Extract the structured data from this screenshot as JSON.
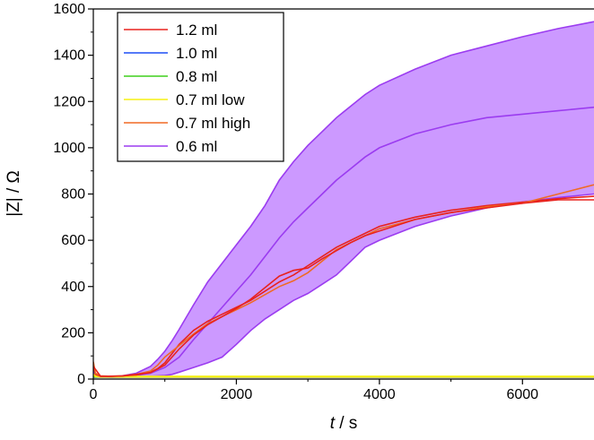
{
  "chart_data": {
    "type": "line",
    "title": "",
    "xlabel_italic": "t",
    "xlabel_unit": " / s",
    "ylabel": "|Z| / Ω",
    "xlim": [
      0,
      7000
    ],
    "ylim": [
      0,
      1600
    ],
    "xticks": [
      0,
      2000,
      4000,
      6000
    ],
    "yticks": [
      0,
      200,
      400,
      600,
      800,
      1000,
      1200,
      1400,
      1600
    ],
    "grid": false,
    "legend_position": "top-left",
    "shaded_band": {
      "series": "0.6 ml",
      "fill_color": "#cc99ff",
      "upper": {
        "x": [
          0,
          30,
          100,
          250,
          400,
          600,
          800,
          900,
          1000,
          1100,
          1200,
          1400,
          1600,
          1800,
          2000,
          2200,
          2400,
          2600,
          2800,
          3000,
          3200,
          3400,
          3600,
          3800,
          4000,
          4500,
          5000,
          5500,
          6000,
          6500,
          7000
        ],
        "values": [
          40,
          20,
          12,
          10,
          14,
          25,
          55,
          85,
          120,
          165,
          215,
          320,
          420,
          500,
          580,
          660,
          750,
          860,
          940,
          1010,
          1070,
          1130,
          1180,
          1230,
          1270,
          1340,
          1400,
          1440,
          1480,
          1515,
          1545
        ]
      },
      "lower": {
        "x": [
          0,
          30,
          100,
          250,
          400,
          600,
          800,
          1000,
          1100,
          1200,
          1400,
          1600,
          1800,
          2000,
          2200,
          2400,
          2600,
          2800,
          3000,
          3200,
          3400,
          3600,
          3800,
          4000,
          4500,
          5000,
          5500,
          6000,
          6500,
          7000
        ],
        "values": [
          30,
          15,
          10,
          8,
          9,
          10,
          12,
          15,
          20,
          30,
          50,
          70,
          95,
          150,
          210,
          260,
          300,
          340,
          370,
          410,
          450,
          510,
          570,
          600,
          660,
          705,
          740,
          765,
          785,
          800
        ]
      }
    },
    "series": [
      {
        "name": "1.2 ml",
        "color": "#e8231e",
        "x": [
          0,
          30,
          100,
          250,
          400,
          600,
          800,
          900,
          1000,
          1200,
          1400,
          1600,
          1800,
          2000,
          2200,
          2400,
          2600,
          2800,
          3000,
          3200,
          3400,
          3600,
          3800,
          4000,
          4500,
          5000,
          5500,
          6000,
          6500,
          7000
        ],
        "values": [
          60,
          20,
          12,
          12,
          13,
          18,
          30,
          45,
          70,
          150,
          210,
          250,
          280,
          310,
          340,
          380,
          420,
          450,
          490,
          530,
          570,
          600,
          630,
          660,
          700,
          730,
          750,
          765,
          780,
          790
        ]
      },
      {
        "name": "1.0 ml",
        "color": "#1d4ef5",
        "x": [
          0,
          7000
        ],
        "values": [
          8,
          8
        ]
      },
      {
        "name": "0.8 ml",
        "color": "#3ecf1b",
        "x": [
          0,
          7000
        ],
        "values": [
          9,
          9
        ]
      },
      {
        "name": "0.7 ml low",
        "color": "#f5f014",
        "x": [
          0,
          30,
          100,
          300,
          7000
        ],
        "values": [
          20,
          12,
          10,
          10,
          10
        ]
      },
      {
        "name": "0.7 ml high",
        "color": "#f06a24",
        "x": [
          0,
          30,
          100,
          250,
          400,
          600,
          800,
          900,
          1000,
          1200,
          1400,
          1600,
          1800,
          2000,
          2200,
          2400,
          2600,
          2800,
          3000,
          3200,
          3400,
          3600,
          3800,
          4000,
          4500,
          5000,
          5500,
          6000,
          6500,
          7000
        ],
        "values": [
          75,
          25,
          14,
          12,
          14,
          20,
          35,
          60,
          95,
          145,
          195,
          240,
          270,
          300,
          330,
          365,
          400,
          425,
          460,
          510,
          560,
          590,
          620,
          650,
          690,
          720,
          745,
          760,
          800,
          840
        ]
      },
      {
        "name": "0.6 ml",
        "color": "#9b3cf0",
        "x": [
          0,
          30,
          100,
          250,
          400,
          600,
          800,
          1000,
          1200,
          1400,
          1600,
          1800,
          2000,
          2200,
          2400,
          2600,
          2800,
          3000,
          3200,
          3400,
          3600,
          3800,
          4000,
          4500,
          5000,
          5500,
          6000,
          6500,
          7000
        ],
        "values": [
          35,
          18,
          11,
          9,
          11,
          16,
          25,
          50,
          95,
          170,
          240,
          310,
          380,
          450,
          530,
          610,
          680,
          740,
          800,
          860,
          910,
          960,
          1000,
          1060,
          1100,
          1130,
          1145,
          1160,
          1175
        ]
      }
    ],
    "extra_lines": [
      {
        "series": "1.2 ml",
        "color": "#e8231e",
        "x": [
          0,
          100,
          400,
          800,
          1000,
          1200,
          1400,
          1600,
          1800,
          2000,
          2200,
          2400,
          2600,
          2800,
          3000,
          3200,
          3400,
          3600,
          3800,
          4000,
          4500,
          5000,
          5500,
          6000,
          6500,
          7000
        ],
        "values": [
          55,
          12,
          13,
          28,
          60,
          130,
          190,
          235,
          270,
          305,
          345,
          395,
          445,
          470,
          480,
          520,
          555,
          590,
          620,
          640,
          690,
          720,
          740,
          760,
          775,
          775
        ]
      }
    ]
  }
}
